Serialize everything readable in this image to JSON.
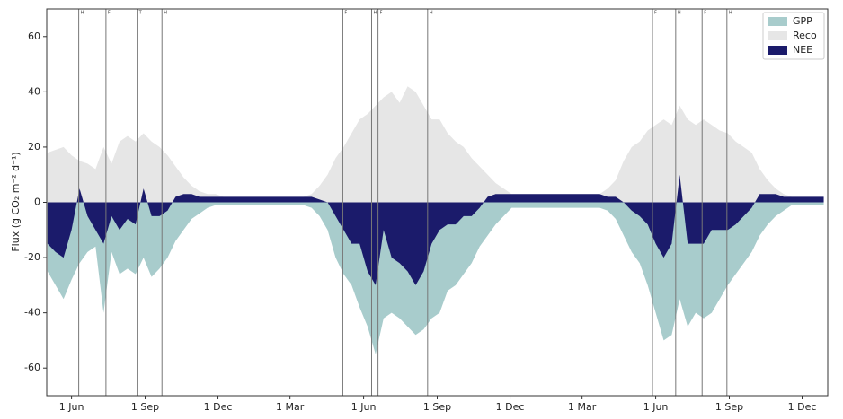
{
  "chart_data": {
    "type": "area",
    "ylabel": "Flux (g CO₂ m⁻² d⁻¹)",
    "x": [
      -30,
      -20,
      -10,
      0,
      10,
      20,
      30,
      40,
      50,
      60,
      70,
      80,
      90,
      100,
      110,
      120,
      130,
      140,
      150,
      160,
      170,
      180,
      190,
      200,
      210,
      220,
      230,
      240,
      250,
      260,
      270,
      280,
      290,
      300,
      310,
      320,
      330,
      340,
      350,
      360,
      370,
      380,
      390,
      400,
      410,
      420,
      430,
      440,
      450,
      460,
      470,
      480,
      490,
      500,
      510,
      520,
      530,
      540,
      550,
      560,
      570,
      580,
      590,
      600,
      610,
      620,
      630,
      640,
      650,
      660,
      670,
      680,
      690,
      700,
      710,
      720,
      730,
      740,
      750,
      760,
      770,
      780,
      790,
      800,
      810,
      820,
      830,
      840,
      850,
      860,
      870,
      880,
      890,
      900,
      910,
      920,
      930,
      940
    ],
    "series": [
      {
        "name": "Reco",
        "color": "#e6e6e6",
        "values": [
          18,
          19,
          20,
          17,
          15,
          14,
          12,
          20,
          14,
          22,
          24,
          22,
          25,
          22,
          20,
          17,
          13,
          9,
          6,
          4,
          3,
          3,
          2,
          2,
          2,
          2,
          2,
          2,
          2,
          2,
          2,
          2,
          2,
          3,
          6,
          10,
          16,
          20,
          25,
          30,
          32,
          35,
          38,
          40,
          36,
          42,
          40,
          35,
          30,
          30,
          25,
          22,
          20,
          16,
          13,
          10,
          7,
          5,
          3,
          3,
          3,
          3,
          3,
          3,
          3,
          3,
          3,
          3,
          3,
          3,
          5,
          8,
          15,
          20,
          22,
          26,
          28,
          30,
          28,
          35,
          30,
          28,
          30,
          28,
          26,
          25,
          22,
          20,
          18,
          12,
          8,
          5,
          3,
          2,
          2,
          2,
          2,
          2
        ]
      },
      {
        "name": "GPP",
        "color": "#a8cccc",
        "values": [
          -25,
          -30,
          -35,
          -28,
          -22,
          -18,
          -16,
          -40,
          -18,
          -26,
          -24,
          -26,
          -20,
          -27,
          -24,
          -20,
          -14,
          -10,
          -6,
          -4,
          -2,
          -1,
          -1,
          -1,
          -1,
          -1,
          -1,
          -1,
          -1,
          -1,
          -1,
          -1,
          -1,
          -2,
          -5,
          -10,
          -20,
          -26,
          -30,
          -38,
          -45,
          -55,
          -42,
          -40,
          -42,
          -45,
          -48,
          -46,
          -42,
          -40,
          -32,
          -30,
          -26,
          -22,
          -16,
          -12,
          -8,
          -5,
          -2,
          -2,
          -2,
          -2,
          -2,
          -2,
          -2,
          -2,
          -2,
          -2,
          -2,
          -2,
          -3,
          -6,
          -12,
          -18,
          -22,
          -30,
          -40,
          -50,
          -48,
          -35,
          -45,
          -40,
          -42,
          -40,
          -35,
          -30,
          -26,
          -22,
          -18,
          -12,
          -8,
          -5,
          -3,
          -1,
          -1,
          -1,
          -1,
          -1
        ]
      },
      {
        "name": "NEE",
        "color": "#1b1b6b",
        "values": [
          -15,
          -18,
          -20,
          -10,
          5,
          -5,
          -10,
          -15,
          -5,
          -10,
          -6,
          -8,
          5,
          -5,
          -5,
          -3,
          2,
          3,
          3,
          2,
          2,
          2,
          2,
          2,
          2,
          2,
          2,
          2,
          2,
          2,
          2,
          2,
          2,
          2,
          1,
          0,
          -5,
          -10,
          -15,
          -15,
          -25,
          -30,
          -10,
          -20,
          -22,
          -25,
          -30,
          -25,
          -15,
          -10,
          -8,
          -8,
          -5,
          -5,
          -2,
          2,
          3,
          3,
          3,
          3,
          3,
          3,
          3,
          3,
          3,
          3,
          3,
          3,
          3,
          3,
          2,
          2,
          0,
          -3,
          -5,
          -8,
          -15,
          -20,
          -15,
          10,
          -15,
          -15,
          -15,
          -10,
          -10,
          -10,
          -8,
          -5,
          -2,
          3,
          3,
          3,
          2,
          2,
          2,
          2,
          2,
          2
        ]
      }
    ],
    "legend_order": [
      "GPP",
      "Reco",
      "NEE"
    ],
    "legend": "upper right",
    "events": [
      {
        "label": "H",
        "x": 9
      },
      {
        "label": "F",
        "x": 43
      },
      {
        "label": "T",
        "x": 82
      },
      {
        "label": "H",
        "x": 113
      },
      {
        "label": "F",
        "x": 339
      },
      {
        "label": "H",
        "x": 375
      },
      {
        "label": "F",
        "x": 383
      },
      {
        "label": "H",
        "x": 445
      },
      {
        "label": "F",
        "x": 726
      },
      {
        "label": "H",
        "x": 755
      },
      {
        "label": "F",
        "x": 788
      },
      {
        "label": "H",
        "x": 819
      }
    ],
    "xlim": [
      -31,
      945
    ],
    "xticks": [
      {
        "value": 0,
        "label": "1 Jun"
      },
      {
        "value": 92,
        "label": "1 Sep"
      },
      {
        "value": 183,
        "label": "1 Dec"
      },
      {
        "value": 273,
        "label": "1 Mar"
      },
      {
        "value": 365,
        "label": "1 Jun"
      },
      {
        "value": 457,
        "label": "1 Sep"
      },
      {
        "value": 548,
        "label": "1 Dec"
      },
      {
        "value": 638,
        "label": "1 Mar"
      },
      {
        "value": 730,
        "label": "1 Jun"
      },
      {
        "value": 822,
        "label": "1 Sep"
      },
      {
        "value": 913,
        "label": "1 Dec"
      }
    ],
    "ylim": [
      -70,
      70
    ],
    "yticks": [
      -60,
      -40,
      -20,
      0,
      20,
      40,
      60
    ],
    "grid": false
  }
}
